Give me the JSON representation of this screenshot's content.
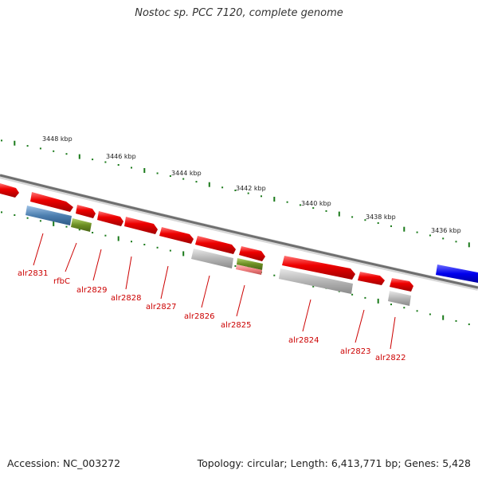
{
  "title": "Nostoc sp. PCC 7120, complete genome",
  "footer": {
    "accession": "Accession: NC_003272",
    "summary": "Topology: circular; Length: 6,413,771 bp; Genes: 5,428"
  },
  "colors": {
    "gene": "#ee0000",
    "rna_like": "#4d7fb0",
    "green_feature": "#6b8e23",
    "pseudo_gray": "#b5b5b5",
    "pink": "#f08080",
    "blue_feature": "#0000ee",
    "ticks": "#1a7a1a",
    "backbone": "#777777",
    "label": "#cc0000"
  },
  "scale_labels": [
    "3448 kbp",
    "3446 kbp",
    "3444 kbp",
    "3442 kbp",
    "3440 kbp",
    "3438 kbp",
    "3436 kbp"
  ],
  "gene_labels": [
    "alr2831",
    "rfbC",
    "alr2829",
    "alr2828",
    "alr2827",
    "alr2826",
    "alr2825",
    "alr2824",
    "alr2823",
    "alr2822"
  ]
}
